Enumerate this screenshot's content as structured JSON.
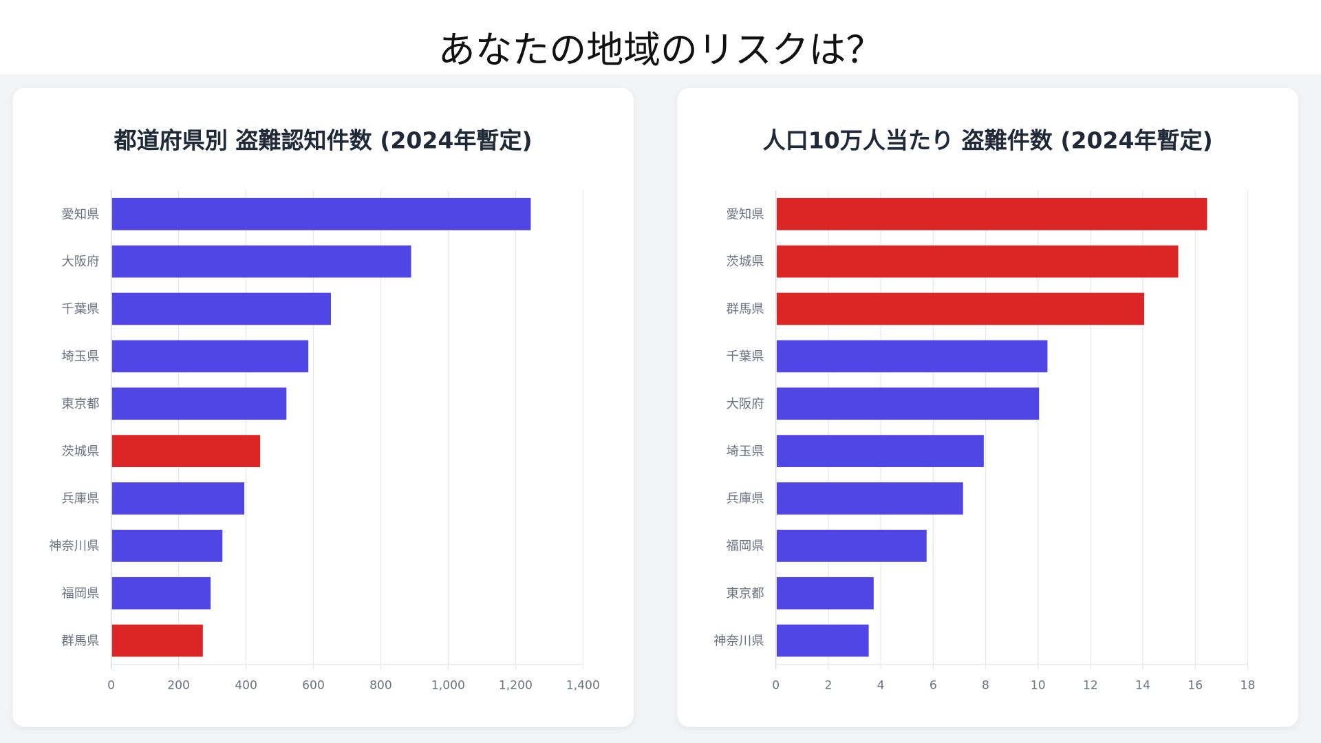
{
  "page_title": "あなたの地域のリスクは？",
  "colors": {
    "default": "#4f46e5",
    "highlight": "#dc2626",
    "grid": "#e5e7eb"
  },
  "chart_data": [
    {
      "type": "bar",
      "orientation": "horizontal",
      "title": "都道府県別 盗難認知件数 (2024年暫定)",
      "categories": [
        "愛知県",
        "大阪府",
        "千葉県",
        "埼玉県",
        "東京都",
        "茨城県",
        "兵庫県",
        "神奈川県",
        "福岡県",
        "群馬県"
      ],
      "values": [
        1245,
        890,
        652,
        585,
        520,
        442,
        395,
        330,
        295,
        272
      ],
      "highlighted": [
        "茨城県",
        "群馬県"
      ],
      "xlim": [
        0,
        1400
      ],
      "xticks": [
        "0",
        "200",
        "400",
        "600",
        "800",
        "1,000",
        "1,200",
        "1,400"
      ],
      "xtick_values": [
        0,
        200,
        400,
        600,
        800,
        1000,
        1200,
        1400
      ],
      "grid": true
    },
    {
      "type": "bar",
      "orientation": "horizontal",
      "title": "人口10万人当たり 盗難件数 (2024年暫定)",
      "categories": [
        "愛知県",
        "茨城県",
        "群馬県",
        "千葉県",
        "大阪府",
        "埼玉県",
        "兵庫県",
        "福岡県",
        "東京都",
        "神奈川県"
      ],
      "values": [
        16.45,
        15.35,
        14.05,
        10.36,
        10.04,
        7.93,
        7.14,
        5.75,
        3.73,
        3.54
      ],
      "highlighted": [
        "愛知県",
        "茨城県",
        "群馬県"
      ],
      "xlim": [
        0,
        18
      ],
      "xticks": [
        "0",
        "2",
        "4",
        "6",
        "8",
        "10",
        "12",
        "14",
        "16",
        "18"
      ],
      "xtick_values": [
        0,
        2,
        4,
        6,
        8,
        10,
        12,
        14,
        16,
        18
      ],
      "grid": true
    }
  ]
}
